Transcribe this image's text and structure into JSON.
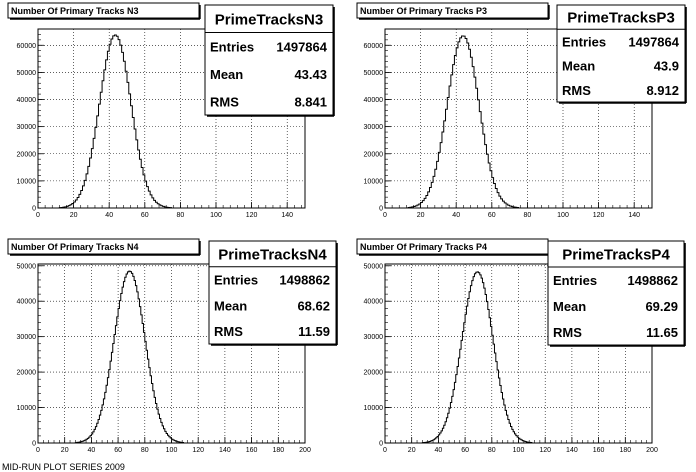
{
  "footer_text": "MID-RUN PLOT SERIES 2009",
  "chart_data": [
    {
      "id": "n3",
      "type": "histogram",
      "title": "Number Of Primary Tracks N3",
      "stats": {
        "name": "PrimeTracksN3",
        "entries_label": "Entries",
        "entries": "1497864",
        "mean_label": "Mean",
        "mean": "43.43",
        "rms_label": "RMS",
        "rms": "8.841"
      },
      "xlim": [
        0,
        150
      ],
      "ylim": [
        0,
        66000
      ],
      "grid": true,
      "xticks": [
        "0",
        "20",
        "40",
        "60",
        "80",
        "100",
        "120",
        "140"
      ],
      "yticks": [
        "0",
        "10000",
        "20000",
        "30000",
        "40000",
        "50000",
        "60000"
      ],
      "entries_total": 1497864,
      "mean": 43.43,
      "rms": 8.841,
      "peak": 63800,
      "bin_width": 1
    },
    {
      "id": "p3",
      "type": "histogram",
      "title": "Number Of Primary Tracks P3",
      "stats": {
        "name": "PrimeTracksP3",
        "entries_label": "Entries",
        "entries": "1497864",
        "mean_label": "Mean",
        "mean": "43.9",
        "rms_label": "RMS",
        "rms": "8.912"
      },
      "xlim": [
        0,
        150
      ],
      "ylim": [
        0,
        66000
      ],
      "grid": true,
      "xticks": [
        "0",
        "20",
        "40",
        "60",
        "80",
        "100",
        "120",
        "140"
      ],
      "yticks": [
        "0",
        "10000",
        "20000",
        "30000",
        "40000",
        "50000",
        "60000"
      ],
      "entries_total": 1497864,
      "mean": 43.9,
      "rms": 8.912,
      "peak": 63500,
      "bin_width": 1
    },
    {
      "id": "n4",
      "type": "histogram",
      "title": "Number Of Primary Tracks N4",
      "stats": {
        "name": "PrimeTracksN4",
        "entries_label": "Entries",
        "entries": "1498862",
        "mean_label": "Mean",
        "mean": "68.62",
        "rms_label": "RMS",
        "rms": "11.59"
      },
      "xlim": [
        0,
        200
      ],
      "ylim": [
        0,
        50500
      ],
      "grid": true,
      "xticks": [
        "0",
        "20",
        "40",
        "60",
        "80",
        "100",
        "120",
        "140",
        "160",
        "180",
        "200"
      ],
      "yticks": [
        "0",
        "10000",
        "20000",
        "30000",
        "40000",
        "50000"
      ],
      "entries_total": 1498862,
      "mean": 68.62,
      "rms": 11.59,
      "peak": 48500,
      "bin_width": 1
    },
    {
      "id": "p4",
      "type": "histogram",
      "title": "Number Of Primary Tracks P4",
      "stats": {
        "name": "PrimeTracksP4",
        "entries_label": "Entries",
        "entries": "1498862",
        "mean_label": "Mean",
        "mean": "69.29",
        "rms_label": "RMS",
        "rms": "11.65"
      },
      "xlim": [
        0,
        200
      ],
      "ylim": [
        0,
        50500
      ],
      "grid": true,
      "xticks": [
        "0",
        "20",
        "40",
        "60",
        "80",
        "100",
        "120",
        "140",
        "160",
        "180",
        "200"
      ],
      "yticks": [
        "0",
        "10000",
        "20000",
        "30000",
        "40000",
        "50000"
      ],
      "entries_total": 1498862,
      "mean": 69.29,
      "rms": 11.65,
      "peak": 48300,
      "bin_width": 1
    }
  ]
}
